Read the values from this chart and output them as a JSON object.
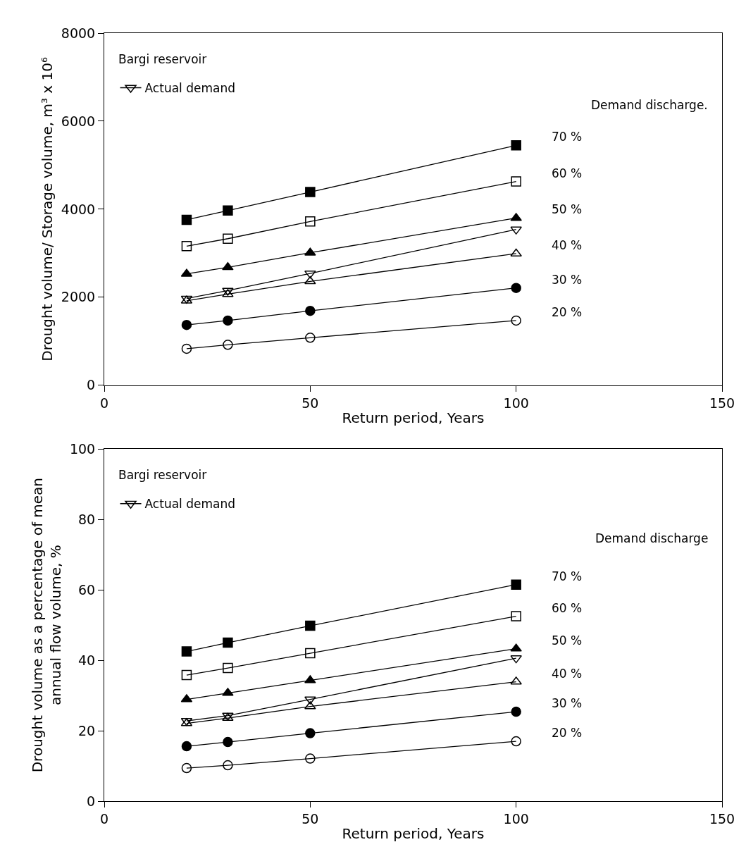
{
  "chart_data": [
    {
      "type": "line",
      "xlabel": "Return period, Years",
      "ylabel": "Drought volume/ Storage volume, m³ x 10⁶",
      "x": [
        20,
        30,
        50,
        100
      ],
      "xlim": [
        0,
        150
      ],
      "xticks": [
        0,
        50,
        100,
        150
      ],
      "ylim": [
        0,
        8000
      ],
      "yticks": [
        0,
        2000,
        4000,
        6000,
        8000
      ],
      "legend": "top left",
      "annotations": [
        "Bargi reservoir",
        "Demand discharge.",
        "70 %",
        "60 %",
        "50 %",
        "40 %",
        "30 %",
        "20 %"
      ],
      "series": [
        {
          "color": "#000000",
          "marker": "square",
          "values": [
            3760,
            3970,
            4390,
            5450
          ]
        },
        {
          "color": "#000000",
          "marker": "square_open",
          "values": [
            3160,
            3330,
            3720,
            4630
          ]
        },
        {
          "color": "#000000",
          "marker": "triangle",
          "values": [
            2530,
            2680,
            3010,
            3800
          ]
        },
        {
          "name": "Actual demand",
          "color": "#000000",
          "marker": "triangle_down_open",
          "values": [
            1970,
            2150,
            2540,
            3540
          ]
        },
        {
          "color": "#000000",
          "marker": "triangle_open",
          "values": [
            1920,
            2070,
            2360,
            2990
          ]
        },
        {
          "color": "#000000",
          "marker": "circle",
          "values": [
            1370,
            1470,
            1690,
            2210
          ]
        },
        {
          "color": "#000000",
          "marker": "circle_open",
          "values": [
            830,
            920,
            1080,
            1470
          ]
        }
      ]
    },
    {
      "type": "line",
      "xlabel": "Return period, Years",
      "ylabel": "Drought volume as a percentage of mean\nannual flow volume, %",
      "x": [
        20,
        30,
        50,
        100
      ],
      "xlim": [
        0,
        150
      ],
      "xticks": [
        0,
        50,
        100,
        150
      ],
      "ylim": [
        0,
        100
      ],
      "yticks": [
        0,
        20,
        40,
        60,
        80,
        100
      ],
      "legend": "top left",
      "annotations": [
        "Bargi reservoir",
        "Demand discharge",
        "70 %",
        "60 %",
        "50 %",
        "40 %",
        "30 %",
        "20 %"
      ],
      "series": [
        {
          "color": "#000000",
          "marker": "square",
          "values": [
            42.5,
            45.0,
            49.8,
            61.5
          ]
        },
        {
          "color": "#000000",
          "marker": "square_open",
          "values": [
            35.8,
            37.8,
            42.0,
            52.5
          ]
        },
        {
          "color": "#000000",
          "marker": "triangle",
          "values": [
            28.9,
            30.7,
            34.3,
            43.3
          ]
        },
        {
          "name": "Actual demand",
          "color": "#000000",
          "marker": "triangle_down_open",
          "values": [
            22.8,
            24.3,
            28.9,
            40.6
          ]
        },
        {
          "color": "#000000",
          "marker": "triangle_open",
          "values": [
            22.1,
            23.6,
            26.9,
            33.9
          ]
        },
        {
          "color": "#000000",
          "marker": "circle",
          "values": [
            15.6,
            16.8,
            19.3,
            25.4
          ]
        },
        {
          "color": "#000000",
          "marker": "circle_open",
          "values": [
            9.4,
            10.2,
            12.1,
            17.0
          ]
        }
      ]
    }
  ]
}
